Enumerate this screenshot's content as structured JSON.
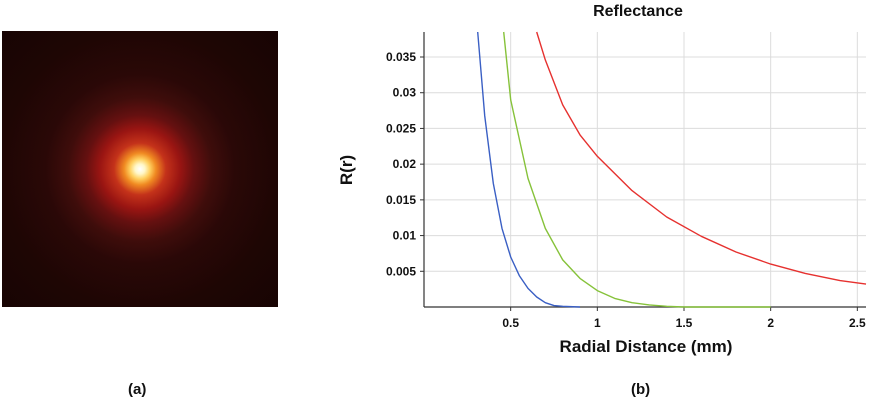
{
  "panels": {
    "a_label": "(a)",
    "b_label": "(b)"
  },
  "colors": {
    "blue": "#3a5fc4",
    "green": "#86c23a",
    "red": "#e6312f"
  },
  "chart_data": {
    "type": "line",
    "title": "Reflectance",
    "xlabel": "Radial Distance (mm)",
    "ylabel": "R(r)",
    "xlim": [
      0,
      2.55
    ],
    "ylim": [
      0,
      0.0385
    ],
    "xticks": [
      "0.5",
      "1",
      "1.5",
      "2",
      "2.5"
    ],
    "yticks": [
      "0.005",
      "0.01",
      "0.015",
      "0.02",
      "0.025",
      "0.03",
      "0.035"
    ],
    "grid": true,
    "series": [
      {
        "color": "#3a5fc4",
        "x": [
          0.31,
          0.35,
          0.4,
          0.45,
          0.5,
          0.55,
          0.6,
          0.65,
          0.7,
          0.75,
          0.8,
          0.9
        ],
        "y": [
          0.0385,
          0.0268,
          0.0173,
          0.011,
          0.007,
          0.0044,
          0.0026,
          0.0014,
          0.0006,
          0.0002,
          0.0001,
          0.0
        ]
      },
      {
        "color": "#86c23a",
        "x": [
          0.46,
          0.5,
          0.6,
          0.7,
          0.8,
          0.9,
          1.0,
          1.1,
          1.2,
          1.3,
          1.4,
          1.5,
          1.7,
          2.0
        ],
        "y": [
          0.0385,
          0.029,
          0.018,
          0.011,
          0.0066,
          0.004,
          0.0023,
          0.0012,
          0.0006,
          0.0003,
          0.0001,
          0.0,
          0.0,
          0.0
        ]
      },
      {
        "color": "#e6312f",
        "x": [
          0.65,
          0.7,
          0.8,
          0.9,
          1.0,
          1.2,
          1.4,
          1.6,
          1.8,
          2.0,
          2.2,
          2.4,
          2.55
        ],
        "y": [
          0.0385,
          0.0346,
          0.0283,
          0.0241,
          0.0211,
          0.0163,
          0.0126,
          0.0099,
          0.0077,
          0.006,
          0.0047,
          0.0037,
          0.0032
        ]
      }
    ]
  }
}
